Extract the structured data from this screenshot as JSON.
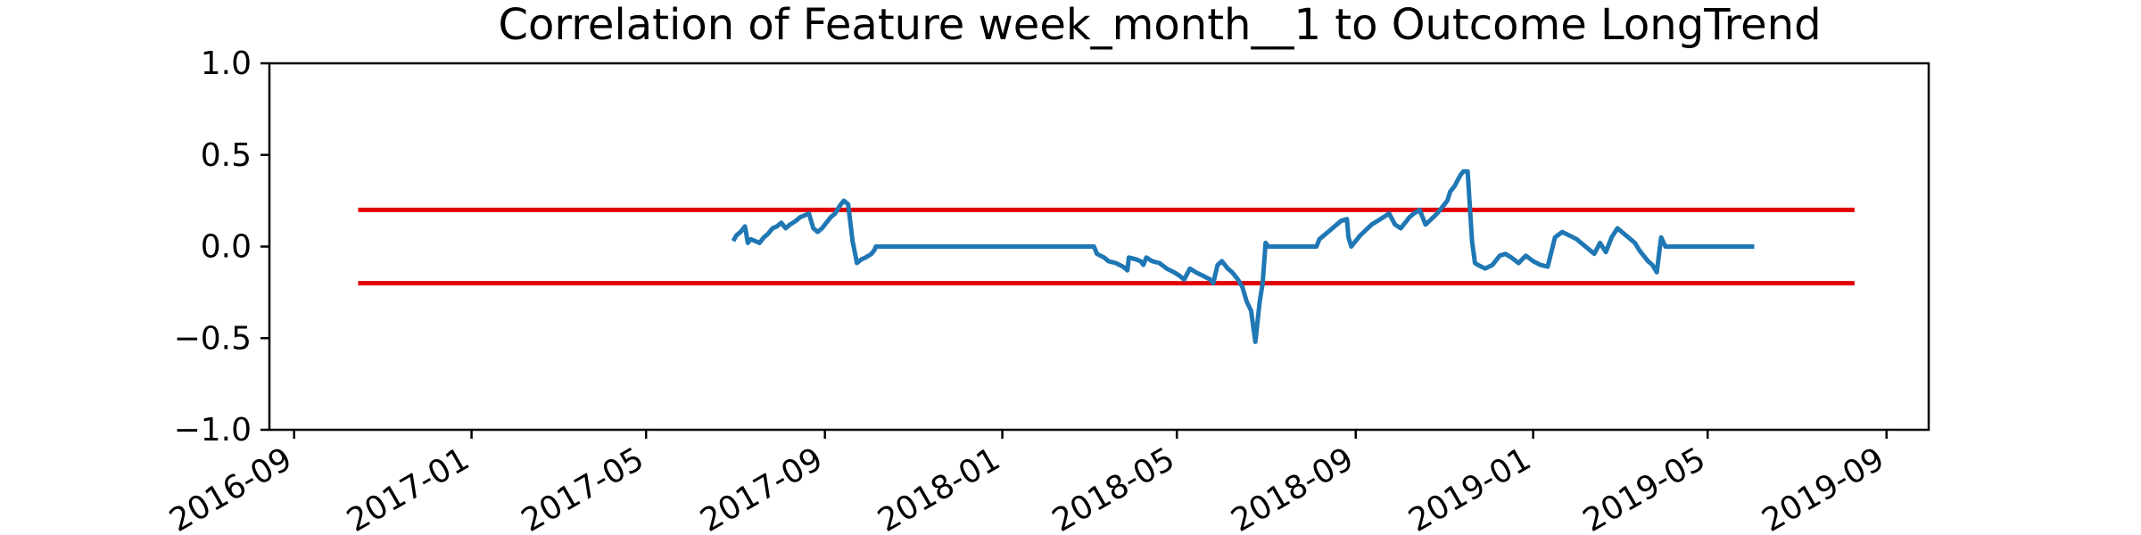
{
  "chart_data": {
    "type": "line",
    "title": "Correlation of Feature week_month__1 to Outcome LongTrend",
    "xlabel": "",
    "ylabel": "",
    "xlim": [
      "2016-08-15",
      "2019-09-30"
    ],
    "ylim": [
      -1.0,
      1.0
    ],
    "x_ticks": [
      "2016-09",
      "2017-01",
      "2017-05",
      "2017-09",
      "2018-01",
      "2018-05",
      "2018-09",
      "2019-01",
      "2019-05",
      "2019-09"
    ],
    "y_ticks": [
      "1.0",
      "0.5",
      "0.0",
      "−0.5",
      "−1.0"
    ],
    "grid": false,
    "colors": {
      "correlation": "#1f77b4",
      "threshold": "#e00000"
    },
    "thresholds": [
      {
        "y": 0.2,
        "x": [
          "2016-10-15",
          "2019-08-10"
        ]
      },
      {
        "y": -0.2,
        "x": [
          "2016-10-15",
          "2019-08-10"
        ]
      }
    ],
    "series": [
      {
        "x": [
          "2017-06-30",
          "2017-07-02",
          "2017-07-05",
          "2017-07-08",
          "2017-07-10",
          "2017-07-12",
          "2017-07-15",
          "2017-07-18",
          "2017-07-21",
          "2017-07-24",
          "2017-07-27",
          "2017-07-30",
          "2017-08-02",
          "2017-08-05",
          "2017-08-08",
          "2017-08-10",
          "2017-08-12",
          "2017-08-15",
          "2017-08-18",
          "2017-08-21",
          "2017-08-24",
          "2017-08-27",
          "2017-08-30",
          "2017-09-01",
          "2017-09-03",
          "2017-09-05",
          "2017-09-08",
          "2017-09-11",
          "2017-09-14",
          "2017-09-17",
          "2017-09-20",
          "2017-09-23",
          "2017-09-26",
          "2017-09-29",
          "2017-10-01",
          "2017-10-03",
          "2017-10-05",
          "2017-10-06",
          "2017-10-08",
          "2017-10-10",
          "2017-10-13",
          "2017-10-16",
          "2017-10-19",
          "2017-10-21",
          "2017-10-23",
          "2018-03-05",
          "2018-03-07",
          "2018-03-12",
          "2018-03-15",
          "2018-03-20",
          "2018-03-25",
          "2018-03-28",
          "2018-03-29",
          "2018-04-03",
          "2018-04-06",
          "2018-04-08",
          "2018-04-10",
          "2018-04-14",
          "2018-04-19",
          "2018-04-24",
          "2018-04-29",
          "2018-05-03",
          "2018-05-06",
          "2018-05-10",
          "2018-05-14",
          "2018-05-19",
          "2018-05-24",
          "2018-05-26",
          "2018-05-29",
          "2018-06-01",
          "2018-06-05",
          "2018-06-08",
          "2018-06-12",
          "2018-06-15",
          "2018-06-18",
          "2018-06-21",
          "2018-06-24",
          "2018-06-27",
          "2018-06-29",
          "2018-07-01",
          "2018-07-03",
          "2018-07-04",
          "2018-07-05",
          "2018-07-07",
          "2018-08-05",
          "2018-08-07",
          "2018-08-10",
          "2018-08-13",
          "2018-08-16",
          "2018-08-19",
          "2018-08-22",
          "2018-08-26",
          "2018-08-27",
          "2018-08-29",
          "2018-09-01",
          "2018-09-04",
          "2018-09-08",
          "2018-09-12",
          "2018-09-16",
          "2018-09-20",
          "2018-09-24",
          "2018-09-28",
          "2018-10-02",
          "2018-10-04",
          "2018-10-06",
          "2018-10-08",
          "2018-10-11",
          "2018-10-15",
          "2018-10-19",
          "2018-10-23",
          "2018-10-27",
          "2018-10-31",
          "2018-11-03",
          "2018-11-05",
          "2018-11-08",
          "2018-11-10",
          "2018-11-12",
          "2018-11-14",
          "2018-11-17",
          "2018-11-20",
          "2018-11-22",
          "2018-11-24",
          "2018-11-29",
          "2018-12-04",
          "2018-12-09",
          "2018-12-13",
          "2018-12-17",
          "2018-12-22",
          "2018-12-27",
          "2019-01-01",
          "2019-01-06",
          "2019-01-11",
          "2019-01-16",
          "2019-01-21",
          "2019-01-26",
          "2019-01-31",
          "2019-02-03",
          "2019-02-06",
          "2019-02-09",
          "2019-02-12",
          "2019-02-16",
          "2019-02-20",
          "2019-02-24",
          "2019-02-28",
          "2019-03-03",
          "2019-03-06",
          "2019-03-09",
          "2019-03-12",
          "2019-03-15",
          "2019-03-18",
          "2019-03-21",
          "2019-03-24",
          "2019-03-27",
          "2019-03-30",
          "2019-04-02",
          "2019-04-05",
          "2019-04-08",
          "2019-04-11",
          "2019-04-14",
          "2019-04-17",
          "2019-04-20",
          "2019-04-23",
          "2019-04-24",
          "2019-04-26",
          "2019-04-28",
          "2019-06-02"
        ],
        "y": [
          0.03,
          0.06,
          0.08,
          0.11,
          0.02,
          0.04,
          0.03,
          0.02,
          0.05,
          0.07,
          0.1,
          0.11,
          0.13,
          0.1,
          0.12,
          0.13,
          0.14,
          0.16,
          0.17,
          0.18,
          0.1,
          0.08,
          0.1,
          0.12,
          0.14,
          0.16,
          0.18,
          0.22,
          0.25,
          0.23,
          0.03,
          -0.09,
          -0.07,
          -0.06,
          -0.05,
          -0.04,
          -0.02,
          0.0,
          0.0,
          0.0,
          0.0,
          0.0,
          0.0,
          0.0,
          0.0,
          0.0,
          -0.04,
          -0.06,
          -0.08,
          -0.09,
          -0.11,
          -0.13,
          -0.06,
          -0.07,
          -0.08,
          -0.1,
          -0.06,
          -0.08,
          -0.09,
          -0.12,
          -0.14,
          -0.16,
          -0.18,
          -0.12,
          -0.14,
          -0.16,
          -0.18,
          -0.2,
          -0.1,
          -0.08,
          -0.12,
          -0.14,
          -0.18,
          -0.22,
          -0.3,
          -0.35,
          -0.52,
          -0.3,
          -0.2,
          0.02,
          0.0,
          0.0,
          0.0,
          0.0,
          0.0,
          0.04,
          0.06,
          0.08,
          0.1,
          0.12,
          0.14,
          0.15,
          0.05,
          0.0,
          0.03,
          0.06,
          0.09,
          0.12,
          0.14,
          0.16,
          0.18,
          0.12,
          0.1,
          0.12,
          0.14,
          0.16,
          0.18,
          0.2,
          0.12,
          0.15,
          0.18,
          0.22,
          0.25,
          0.3,
          0.33,
          0.36,
          0.39,
          0.41,
          0.41,
          0.03,
          -0.09,
          -0.1,
          -0.12,
          -0.1,
          -0.05,
          -0.04,
          -0.06,
          -0.09,
          -0.05,
          -0.08,
          -0.1,
          -0.11,
          0.05,
          0.08,
          0.06,
          0.04,
          0.02,
          0.0,
          -0.02,
          -0.04,
          0.02,
          -0.03,
          0.05,
          0.1,
          0.08,
          0.06,
          0.04,
          0.02,
          -0.02,
          -0.05,
          -0.08,
          -0.1,
          -0.14,
          0.05,
          0.0,
          0.0,
          0.0,
          0.0,
          0.0,
          0.0,
          0.0,
          0.0,
          0.0,
          0.0,
          0.0,
          0.0
        ]
      }
    ]
  }
}
